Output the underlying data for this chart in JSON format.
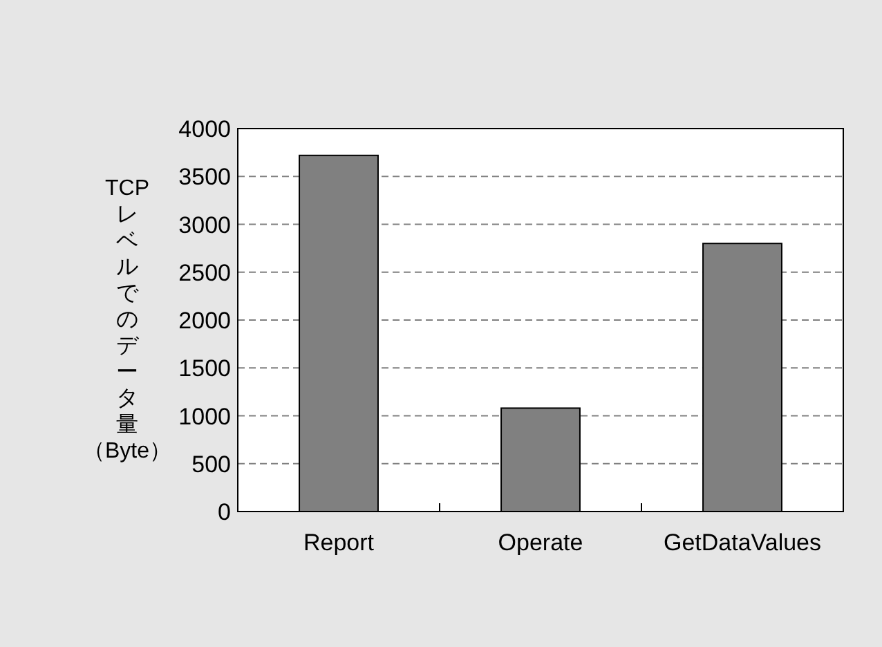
{
  "chart_data": {
    "type": "bar",
    "ylabel": "TCPレベルでのデータ量（Byte）",
    "categories": [
      "Report",
      "Operate",
      "GetDataValues"
    ],
    "values": [
      3720,
      1080,
      2800
    ],
    "color": "#808080",
    "ylim": [
      0,
      4000
    ],
    "yticks": [
      0,
      500,
      1000,
      1500,
      2000,
      2500,
      3000,
      3500,
      4000
    ],
    "grid": "y"
  }
}
